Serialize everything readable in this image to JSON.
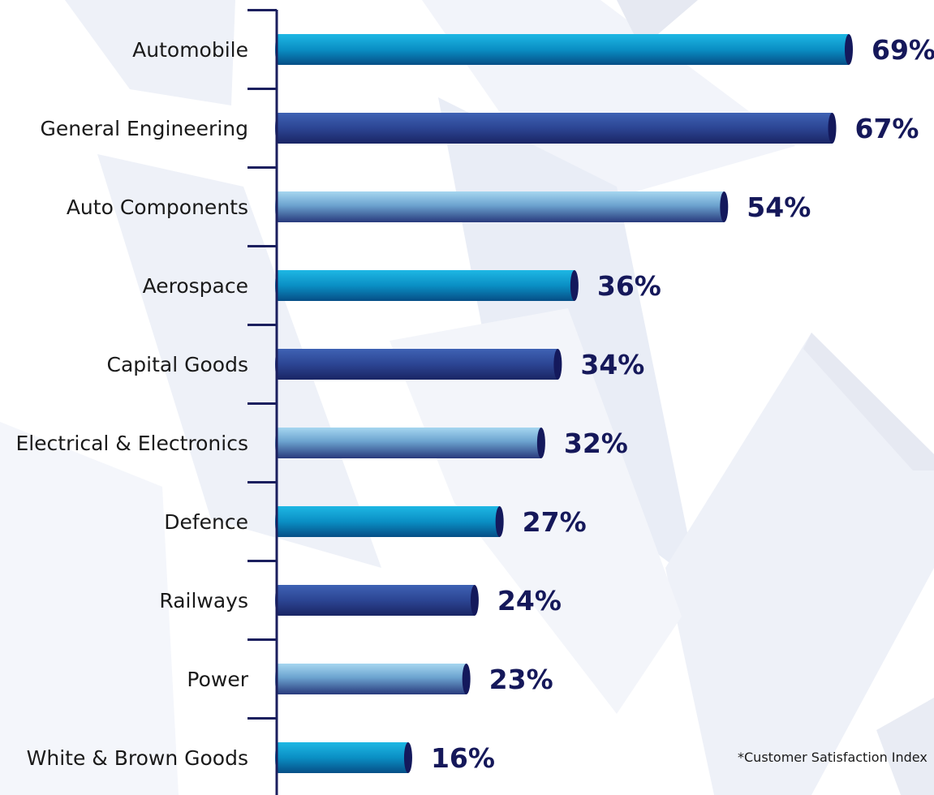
{
  "chart_data": {
    "type": "bar",
    "orientation": "horizontal",
    "categories": [
      "Automobile",
      "General Engineering",
      "Auto Components",
      "Aerospace",
      "Capital Goods",
      "Electrical & Electronics",
      "Defence",
      "Railways",
      "Power",
      "White & Brown Goods"
    ],
    "values": [
      69,
      67,
      54,
      36,
      34,
      32,
      27,
      24,
      23,
      16
    ],
    "value_labels": [
      "69%",
      "67%",
      "54%",
      "36%",
      "34%",
      "32%",
      "27%",
      "24%",
      "23%",
      "16%"
    ],
    "value_unit": "%",
    "xlim": [
      0,
      69
    ],
    "bar_styles": [
      "teal",
      "navy",
      "light",
      "teal",
      "navy",
      "light",
      "teal",
      "navy",
      "light",
      "teal"
    ],
    "colors": {
      "teal": "#0a96c8",
      "navy": "#2c4593",
      "light": "#8fc3e2",
      "value_text": "#15185a",
      "axis": "#1b1f5e"
    },
    "grid": false,
    "legend": "none"
  },
  "footnote": "*Customer Satisfaction Index"
}
